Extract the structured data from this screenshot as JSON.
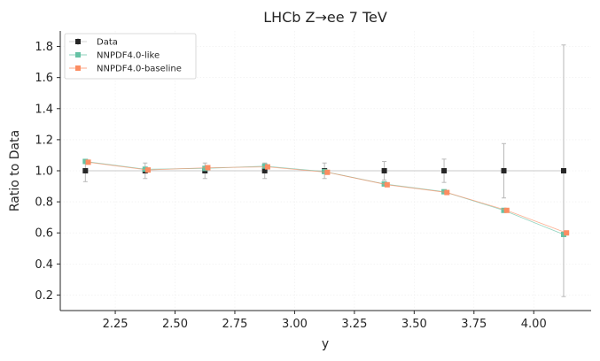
{
  "chart_data": {
    "type": "scatter",
    "title": "LHCb Z→ee 7 TeV",
    "xlabel": "y",
    "ylabel": "Ratio to Data",
    "xlim": [
      2.02,
      4.24
    ],
    "ylim": [
      0.1,
      1.9
    ],
    "xticks": [
      "2.25",
      "2.50",
      "2.75",
      "3.00",
      "3.25",
      "3.50",
      "3.75",
      "4.00"
    ],
    "yticks": [
      "0.2",
      "0.4",
      "0.6",
      "0.8",
      "1.0",
      "1.2",
      "1.4",
      "1.6",
      "1.8"
    ],
    "grid": true,
    "legend_position": "top-left",
    "series": [
      {
        "name": "Data",
        "color": "#262626",
        "x": [
          2.125,
          2.375,
          2.625,
          2.875,
          3.125,
          3.375,
          3.625,
          3.875,
          4.125
        ],
        "y": [
          1.0,
          1.0,
          1.0,
          1.0,
          1.0,
          1.0,
          1.0,
          1.0,
          1.0
        ],
        "err": [
          0.07,
          0.05,
          0.05,
          0.05,
          0.05,
          0.06,
          0.075,
          0.175,
          0.81
        ]
      },
      {
        "name": "NNPDF4.0-like",
        "color": "#66c2a5",
        "x": [
          2.125,
          2.375,
          2.625,
          2.875,
          3.125,
          3.375,
          3.625,
          3.875,
          4.125
        ],
        "y": [
          1.06,
          1.01,
          1.015,
          1.03,
          0.995,
          0.915,
          0.865,
          0.745,
          0.59
        ]
      },
      {
        "name": "NNPDF4.0-baseline",
        "color": "#fc8d62",
        "x": [
          2.125,
          2.375,
          2.625,
          2.875,
          3.125,
          3.375,
          3.625,
          3.875,
          4.125
        ],
        "y": [
          1.055,
          1.005,
          1.02,
          1.025,
          0.99,
          0.91,
          0.86,
          0.745,
          0.6
        ]
      }
    ]
  }
}
